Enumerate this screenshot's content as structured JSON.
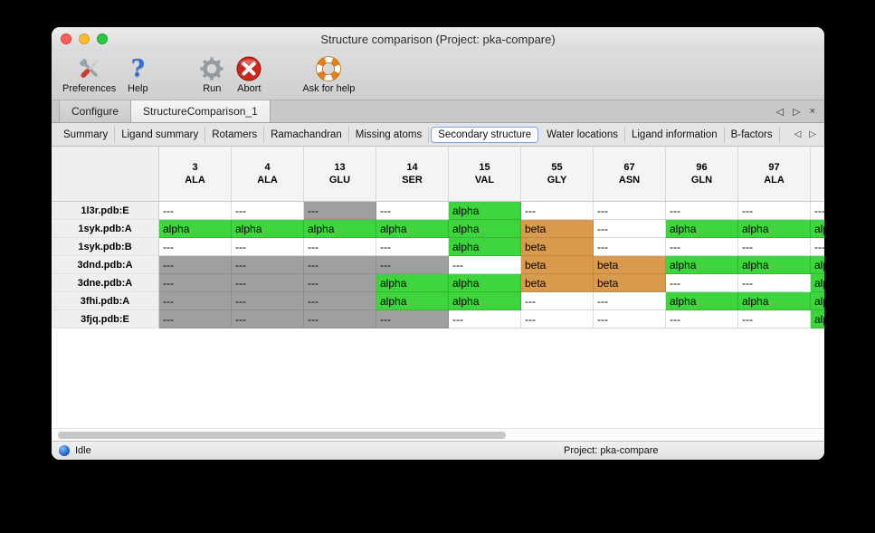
{
  "window": {
    "title": "Structure comparison (Project: pka-compare)"
  },
  "toolbar": {
    "items": [
      {
        "label": "Preferences",
        "icon": "tools-icon"
      },
      {
        "label": "Help",
        "icon": "question-icon"
      },
      {
        "label": "Run",
        "icon": "gear-icon"
      },
      {
        "label": "Abort",
        "icon": "abort-icon"
      },
      {
        "label": "Ask for help",
        "icon": "lifebuoy-icon"
      }
    ]
  },
  "tabbar": {
    "tabs": [
      {
        "label": "Configure",
        "active": false
      },
      {
        "label": "StructureComparison_1",
        "active": true
      }
    ],
    "controls": {
      "prev": "◁",
      "next": "▷",
      "close": "×"
    }
  },
  "subtabbar": {
    "tabs": [
      {
        "label": "Summary",
        "active": false
      },
      {
        "label": "Ligand summary",
        "active": false
      },
      {
        "label": "Rotamers",
        "active": false
      },
      {
        "label": "Ramachandran",
        "active": false
      },
      {
        "label": "Missing atoms",
        "active": false
      },
      {
        "label": "Secondary structure",
        "active": true
      },
      {
        "label": "Water locations",
        "active": false
      },
      {
        "label": "Ligand information",
        "active": false
      },
      {
        "label": "B-factors",
        "active": false
      }
    ],
    "controls": {
      "prev": "◁",
      "next": "▷"
    }
  },
  "table": {
    "columns": [
      {
        "number": "3",
        "residue": "ALA"
      },
      {
        "number": "4",
        "residue": "ALA"
      },
      {
        "number": "13",
        "residue": "GLU"
      },
      {
        "number": "14",
        "residue": "SER"
      },
      {
        "number": "15",
        "residue": "VAL"
      },
      {
        "number": "55",
        "residue": "GLY"
      },
      {
        "number": "67",
        "residue": "ASN"
      },
      {
        "number": "96",
        "residue": "GLN"
      },
      {
        "number": "97",
        "residue": "ALA"
      },
      {
        "number": "",
        "residue": ""
      }
    ],
    "cell_display": {
      "alpha": {
        "text": "alpha",
        "bg": "#3ed43e"
      },
      "beta": {
        "text": "beta",
        "bg": "#d89a4d"
      },
      "gap": {
        "text": "---",
        "bg": "#9f9f9f"
      },
      "none": {
        "text": "---",
        "bg": "#ffffff"
      }
    },
    "rows": [
      {
        "name": "1l3r.pdb:E",
        "cells": [
          "none",
          "none",
          "gap",
          "none",
          "alpha",
          "none",
          "none",
          "none",
          "none",
          "none"
        ]
      },
      {
        "name": "1syk.pdb:A",
        "cells": [
          "alpha",
          "alpha",
          "alpha",
          "alpha",
          "alpha",
          "beta",
          "none",
          "alpha",
          "alpha",
          "alpha"
        ]
      },
      {
        "name": "1syk.pdb:B",
        "cells": [
          "none",
          "none",
          "none",
          "none",
          "alpha",
          "beta",
          "none",
          "none",
          "none",
          "none"
        ]
      },
      {
        "name": "3dnd.pdb:A",
        "cells": [
          "gap",
          "gap",
          "gap",
          "gap",
          "none",
          "beta",
          "beta",
          "alpha",
          "alpha",
          "alpha"
        ]
      },
      {
        "name": "3dne.pdb:A",
        "cells": [
          "gap",
          "gap",
          "gap",
          "alpha",
          "alpha",
          "beta",
          "beta",
          "none",
          "none",
          "alpha"
        ]
      },
      {
        "name": "3fhi.pdb:A",
        "cells": [
          "gap",
          "gap",
          "gap",
          "alpha",
          "alpha",
          "none",
          "none",
          "alpha",
          "alpha",
          "alpha"
        ]
      },
      {
        "name": "3fjq.pdb:E",
        "cells": [
          "gap",
          "gap",
          "gap",
          "gap",
          "none",
          "none",
          "none",
          "none",
          "none",
          "alpha"
        ]
      }
    ]
  },
  "statusbar": {
    "status": "Idle",
    "project": "Project: pka-compare"
  }
}
